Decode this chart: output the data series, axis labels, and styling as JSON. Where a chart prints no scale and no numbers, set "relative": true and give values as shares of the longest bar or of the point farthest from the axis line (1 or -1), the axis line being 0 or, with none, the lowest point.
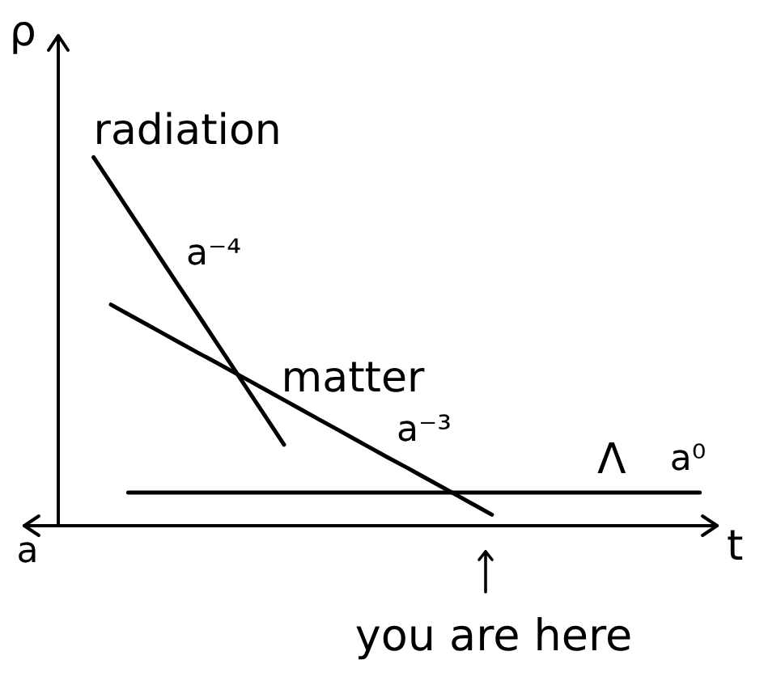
{
  "chart_data": {
    "type": "line",
    "relative": true,
    "ylabel": "ρ",
    "xlabel": "t",
    "marker": "none",
    "line_style": "solid",
    "categories": [
      null,
      null,
      null,
      null,
      null,
      null,
      null,
      null,
      null,
      null,
      null,
      null,
      null,
      null,
      null,
      null,
      null,
      null,
      null,
      null,
      null,
      null,
      null,
      null,
      null,
      null,
      null,
      null,
      null,
      null,
      null,
      null,
      null,
      null,
      null,
      null,
      null,
      null,
      null,
      null,
      null
    ],
    "series": [
      {
        "name": "radiation",
        "color": "#000000",
        "values": [
          null,
          null,
          null,
          null,
          1,
          0.929,
          0.858,
          0.787,
          0.716,
          0.645,
          0.575,
          0.504,
          0.433,
          0.362,
          0.291,
          0.22,
          null,
          null,
          null,
          null,
          null,
          null,
          null,
          null,
          null,
          null,
          null,
          null,
          null,
          null,
          null,
          null,
          null,
          null,
          null,
          null,
          null,
          null,
          null,
          null,
          null
        ]
      },
      {
        "name": "matter",
        "color": "#000000",
        "values": [
          null,
          null,
          null,
          null,
          null,
          0.6,
          0.574,
          0.548,
          0.522,
          0.496,
          0.47,
          0.445,
          0.419,
          0.393,
          0.367,
          0.341,
          0.315,
          0.289,
          0.263,
          0.237,
          0.211,
          0.185,
          0.16,
          0.134,
          0.108,
          0.082,
          0.056,
          0.03,
          null,
          null,
          null,
          null,
          null,
          null,
          null,
          null,
          null,
          null,
          null,
          null,
          null
        ]
      },
      {
        "name": "Λ",
        "color": "#000000",
        "values": [
          null,
          null,
          null,
          null,
          null,
          null,
          0.09,
          0.09,
          0.09,
          0.09,
          0.09,
          0.09,
          0.09,
          0.09,
          0.09,
          0.09,
          0.09,
          0.09,
          0.09,
          0.09,
          0.09,
          0.09,
          0.09,
          0.09,
          0.09,
          0.09,
          0.09,
          0.09,
          0.09,
          0.09,
          0.09,
          0.09,
          0.09,
          0.09,
          0.09,
          0.09,
          0.09,
          0.09,
          0.09,
          0.09,
          null
        ]
      }
    ],
    "annotations": [
      "a⁻⁴",
      "a⁻³",
      "a⁰",
      "you are here",
      "a"
    ]
  }
}
